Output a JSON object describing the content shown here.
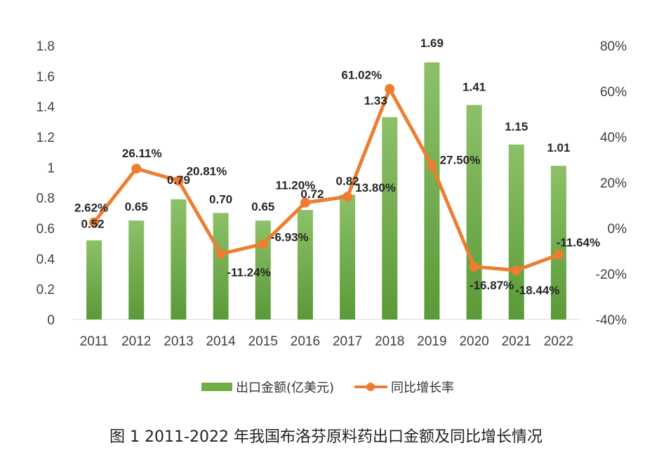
{
  "caption": "图 1 2011-2022 年我国布洛芬原料药出口金额及同比增长情况",
  "chart_data": {
    "type": "bar",
    "categories": [
      "2011",
      "2012",
      "2013",
      "2014",
      "2015",
      "2016",
      "2017",
      "2018",
      "2019",
      "2020",
      "2021",
      "2022"
    ],
    "series": [
      {
        "name": "出口金额(亿美元)",
        "type": "bar",
        "axis": "left",
        "color": "#70ad47",
        "values": [
          0.52,
          0.65,
          0.79,
          0.7,
          0.65,
          0.72,
          0.82,
          1.33,
          1.69,
          1.41,
          1.15,
          1.01
        ],
        "labels": [
          "0.52",
          "0.65",
          "0.79",
          "0.70",
          "0.65",
          "0.72",
          "0.82",
          "1.33",
          "1.69",
          "1.41",
          "1.15",
          "1.01"
        ]
      },
      {
        "name": "同比增长率",
        "type": "line",
        "axis": "right",
        "color": "#ed7d31",
        "values": [
          2.62,
          26.11,
          20.81,
          -11.24,
          -6.93,
          11.2,
          13.8,
          61.02,
          27.5,
          -16.87,
          -18.44,
          -11.64
        ],
        "labels": [
          "2.62%",
          "26.11%",
          "20.81%",
          "-11.24%",
          "-6.93%",
          "11.20%",
          "13.80%",
          "61.02%",
          "27.50%",
          "-16.87%",
          "-18.44%",
          "-11.64%"
        ]
      }
    ],
    "y_left": {
      "min": 0,
      "max": 1.8,
      "step": 0.2,
      "ticks": [
        "0",
        "0.2",
        "0.4",
        "0.6",
        "0.8",
        "1",
        "1.2",
        "1.4",
        "1.6",
        "1.8"
      ]
    },
    "y_right": {
      "min": -40,
      "max": 80,
      "step": 20,
      "ticks": [
        "-40%",
        "-20%",
        "0%",
        "20%",
        "40%",
        "60%",
        "80%"
      ]
    },
    "grid": false,
    "legend": "bottom"
  }
}
